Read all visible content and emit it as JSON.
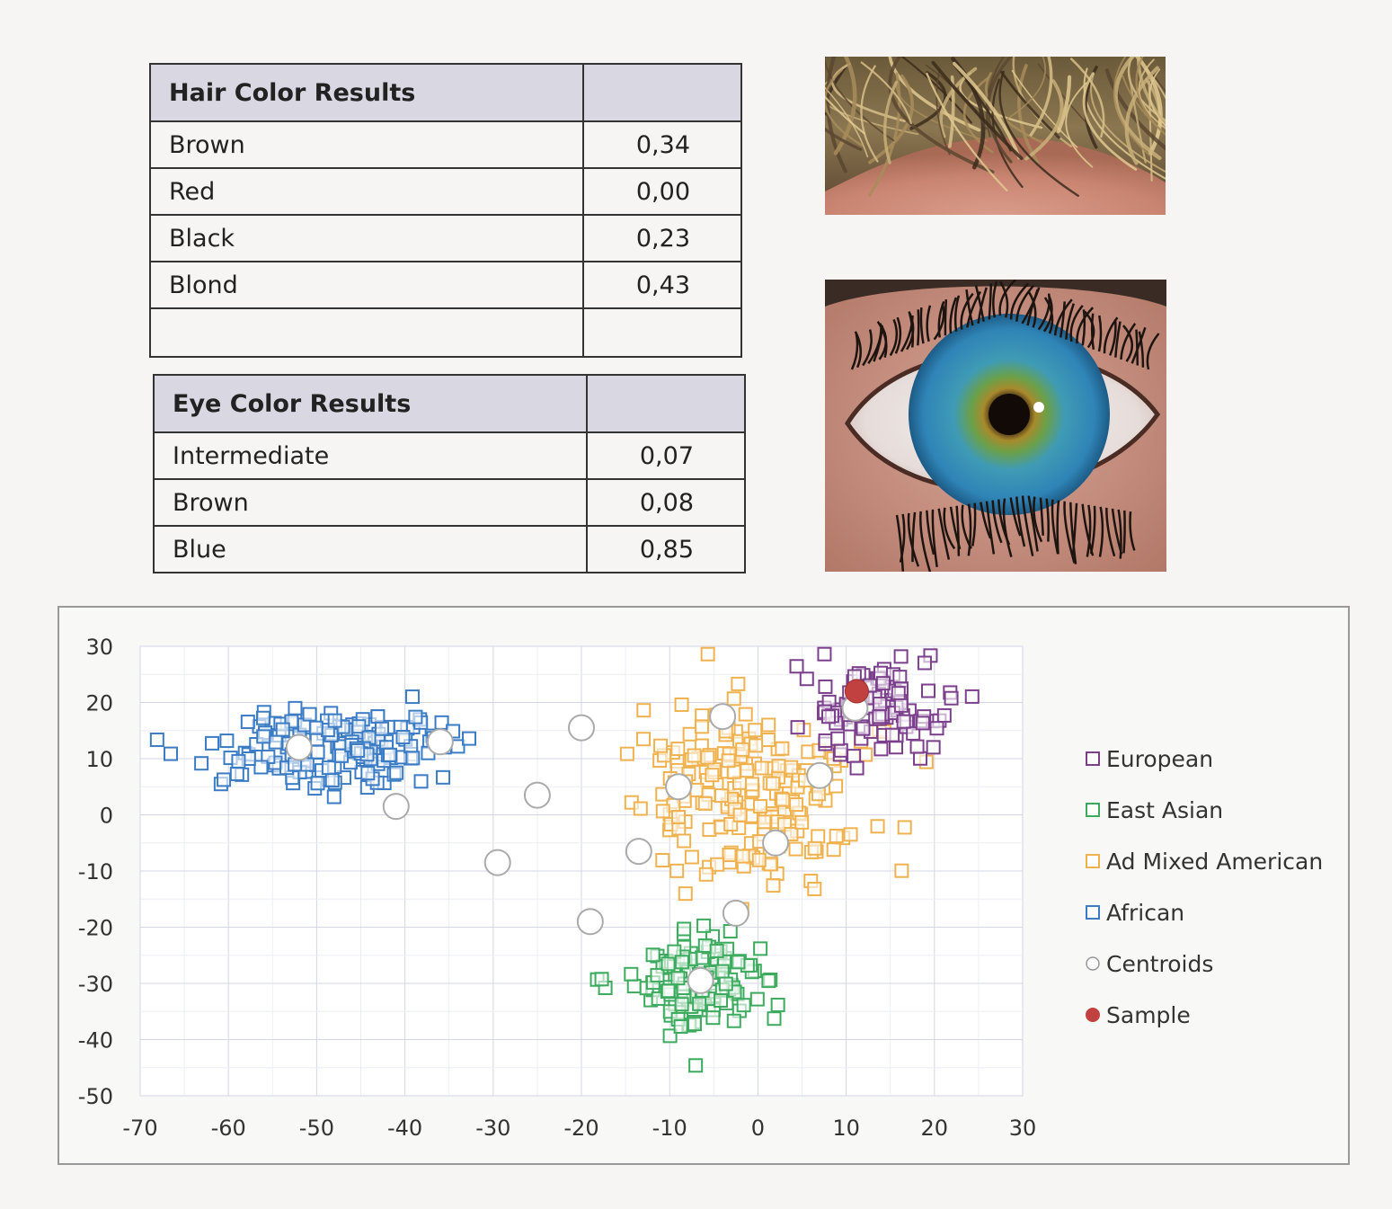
{
  "hair_table": {
    "title": "Hair Color Results",
    "rows": [
      {
        "label": "Brown",
        "value": "0,34"
      },
      {
        "label": "Red",
        "value": "0,00"
      },
      {
        "label": "Black",
        "value": "0,23"
      },
      {
        "label": "Blond",
        "value": "0,43"
      }
    ]
  },
  "eye_table": {
    "title": "Eye Color Results",
    "rows": [
      {
        "label": "Intermediate",
        "value": "0,07"
      },
      {
        "label": "Brown",
        "value": "0,08"
      },
      {
        "label": "Blue",
        "value": "0,85"
      }
    ]
  },
  "photos": {
    "hair": "photo-of-wavy-blond-brown-hair",
    "eye": "photo-of-blue-green-eye"
  },
  "chart_data": {
    "type": "scatter",
    "title": "",
    "xlabel": "",
    "ylabel": "",
    "xlim": [
      -70,
      30
    ],
    "ylim": [
      -50,
      30
    ],
    "xticks": [
      -70,
      -60,
      -50,
      -40,
      -30,
      -20,
      -10,
      0,
      10,
      20,
      30
    ],
    "yticks": [
      30,
      20,
      10,
      0,
      -10,
      -20,
      -30,
      -40,
      -50
    ],
    "grid": true,
    "legend_position": "right",
    "series": [
      {
        "name": "European",
        "marker": "square-open",
        "color": "#7b3f8c",
        "cluster": {
          "center": [
            13,
            19
          ],
          "spread": [
            4.5,
            4
          ],
          "count": 110
        }
      },
      {
        "name": "East Asian",
        "marker": "square-open",
        "color": "#3cab5e",
        "cluster": {
          "center": [
            -6.5,
            -30
          ],
          "spread": [
            3.5,
            4.2
          ],
          "count": 140
        }
      },
      {
        "name": "Ad Mixed American",
        "marker": "square-open",
        "color": "#f0b24f",
        "cluster": {
          "center": [
            0,
            3
          ],
          "spread": [
            6.5,
            8
          ],
          "count": 200
        }
      },
      {
        "name": "African",
        "marker": "square-open",
        "color": "#3b7cc4",
        "cluster": {
          "center": [
            -48,
            11.5
          ],
          "spread": [
            6.5,
            3.5
          ],
          "count": 170
        }
      },
      {
        "name": "Centroids",
        "marker": "circle-open",
        "color": "#aaaaaa",
        "points": [
          [
            -52,
            12
          ],
          [
            -36,
            13
          ],
          [
            -41,
            1.5
          ],
          [
            -29.5,
            -8.5
          ],
          [
            -25,
            3.5
          ],
          [
            -20,
            15.5
          ],
          [
            -19,
            -19
          ],
          [
            -13.5,
            -6.5
          ],
          [
            -9,
            5
          ],
          [
            -4,
            17.5
          ],
          [
            2,
            -5
          ],
          [
            7,
            7
          ],
          [
            -2.5,
            -17.5
          ],
          [
            -6.5,
            -29.5
          ],
          [
            11,
            19
          ]
        ]
      },
      {
        "name": "Sample",
        "marker": "circle-filled",
        "color": "#c0413f",
        "points": [
          [
            11.2,
            22
          ]
        ]
      }
    ]
  }
}
